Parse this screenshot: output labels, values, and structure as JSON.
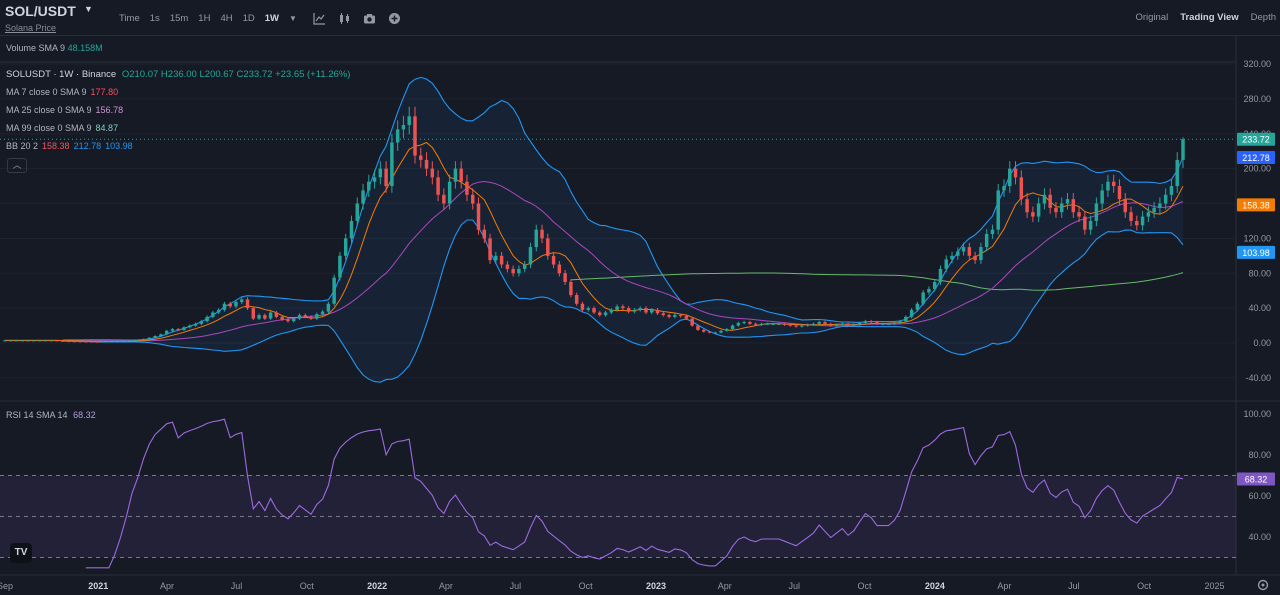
{
  "header": {
    "symbol": "SOL/USDT",
    "subtitle": "Solana Price",
    "timeframes": [
      "Time",
      "1s",
      "15m",
      "1H",
      "4H",
      "1D",
      "1W"
    ],
    "active_timeframe": "1W",
    "tools": [
      "indicator-icon",
      "candle-type-icon",
      "camera-icon",
      "add-icon"
    ],
    "views": [
      "Original",
      "Trading View",
      "Depth"
    ],
    "active_view": "Trading View"
  },
  "volume": {
    "label": "Volume SMA 9",
    "value": "48.158M"
  },
  "legend": {
    "title": "SOLUSDT · 1W · Binance",
    "o_label": "O",
    "o": "210.07",
    "h_label": "H",
    "h": "236.00",
    "l_label": "L",
    "l": "200.67",
    "c_label": "C",
    "c": "233.72",
    "change": "+23.65 (+11.26%)",
    "ma7_label": "MA 7 close 0 SMA 9",
    "ma7_value": "177.80",
    "ma25_label": "MA 25 close 0 SMA 9",
    "ma25_value": "156.78",
    "ma99_label": "MA 99 close 0 SMA 9",
    "ma99_value": "84.87",
    "bb_label": "BB 20 2",
    "bb_mid": "158.38",
    "bb_upper": "212.78",
    "bb_lower": "103.98"
  },
  "rsi": {
    "label": "RSI 14 SMA 14",
    "value": "68.32"
  },
  "price_axis": {
    "ticks": [
      "320.00",
      "280.00",
      "240.00",
      "200.00",
      "160.00",
      "120.00",
      "80.00",
      "40.00",
      "0.00",
      "-40.00"
    ],
    "tick_values": [
      320,
      280,
      240,
      200,
      160,
      120,
      80,
      40,
      0,
      -40
    ],
    "tags": [
      {
        "text": "233.72",
        "value": 233.72,
        "color": "#26a69a"
      },
      {
        "text": "212.78",
        "value": 212.78,
        "color": "#2962ff"
      },
      {
        "text": "158.38",
        "value": 158.38,
        "color": "#f57c00"
      },
      {
        "text": "103.98",
        "value": 103.98,
        "color": "#2196f3"
      }
    ]
  },
  "rsi_axis": {
    "ticks": [
      "100.00",
      "80.00",
      "60.00",
      "40.00"
    ],
    "tick_values": [
      100,
      80,
      60,
      40
    ],
    "tag": {
      "text": "68.32",
      "value": 68.32,
      "color": "#7e57c2"
    }
  },
  "time_axis": [
    "Sep",
    "2021",
    "Apr",
    "Jul",
    "Oct",
    "2022",
    "Apr",
    "Jul",
    "Oct",
    "2023",
    "Apr",
    "Jul",
    "Oct",
    "2024",
    "Apr",
    "Jul",
    "Oct",
    "2025"
  ],
  "time_axis_bold": [
    "2021",
    "2022",
    "2023",
    "2024"
  ],
  "logo": "TV",
  "colors": {
    "up": "#26a69a",
    "down": "#ef5350",
    "ma7": "#f7525f",
    "ma25": "#ab47bc",
    "ma99": "#66bb6a",
    "bb_upper": "#2196f3",
    "bb_mid": "#f57c00",
    "bb_lower": "#2196f3",
    "rsi": "#9c6ade",
    "background": "#161a25"
  },
  "chart_data": {
    "type": "candlestick",
    "interval": "1W",
    "x_start": "2020-09-01",
    "x_end": "2025-01-20",
    "ylim": [
      -40,
      330
    ],
    "closes": [
      3,
      3,
      3,
      3,
      3,
      3,
      3,
      3,
      3,
      2.5,
      2.2,
      2,
      1.9,
      1.8,
      1.7,
      1.6,
      1.5,
      1.6,
      1.7,
      2,
      2.2,
      2.5,
      3,
      3.5,
      4.5,
      6,
      8,
      10,
      14,
      16,
      15,
      18,
      20,
      22,
      25,
      30,
      35,
      38,
      45,
      42,
      47,
      50,
      40,
      28,
      32,
      28,
      35,
      30,
      27,
      25,
      28,
      32,
      30,
      28,
      33,
      36,
      45,
      75,
      100,
      120,
      140,
      160,
      175,
      185,
      190,
      200,
      180,
      230,
      245,
      250,
      260,
      215,
      210,
      200,
      190,
      170,
      160,
      185,
      200,
      185,
      170,
      160,
      130,
      120,
      95,
      100,
      90,
      85,
      80,
      85,
      90,
      110,
      130,
      120,
      100,
      90,
      80,
      70,
      55,
      45,
      38,
      40,
      35,
      32,
      35,
      38,
      42,
      40,
      36,
      38,
      40,
      35,
      38,
      34,
      32,
      30,
      32,
      31,
      28,
      20,
      15,
      13,
      12,
      12,
      14,
      16,
      20,
      23,
      24,
      22,
      21,
      22,
      22,
      22,
      22,
      21,
      20,
      19,
      20,
      21,
      22,
      24,
      22,
      20,
      21,
      22,
      20,
      21,
      23,
      25,
      24,
      22,
      22,
      22,
      23,
      25,
      30,
      38,
      45,
      58,
      62,
      70,
      85,
      96,
      100,
      105,
      110,
      100,
      95,
      110,
      125,
      130,
      175,
      180,
      200,
      190,
      165,
      150,
      145,
      160,
      170,
      155,
      150,
      160,
      165,
      150,
      145,
      130,
      140,
      160,
      175,
      185,
      180,
      165,
      150,
      140,
      135,
      145,
      150,
      155,
      160,
      170,
      180,
      210,
      233.72
    ],
    "ohlc_latest": {
      "open": 210.07,
      "high": 236.0,
      "low": 200.67,
      "close": 233.72
    },
    "rsi_latest": 68.32
  }
}
